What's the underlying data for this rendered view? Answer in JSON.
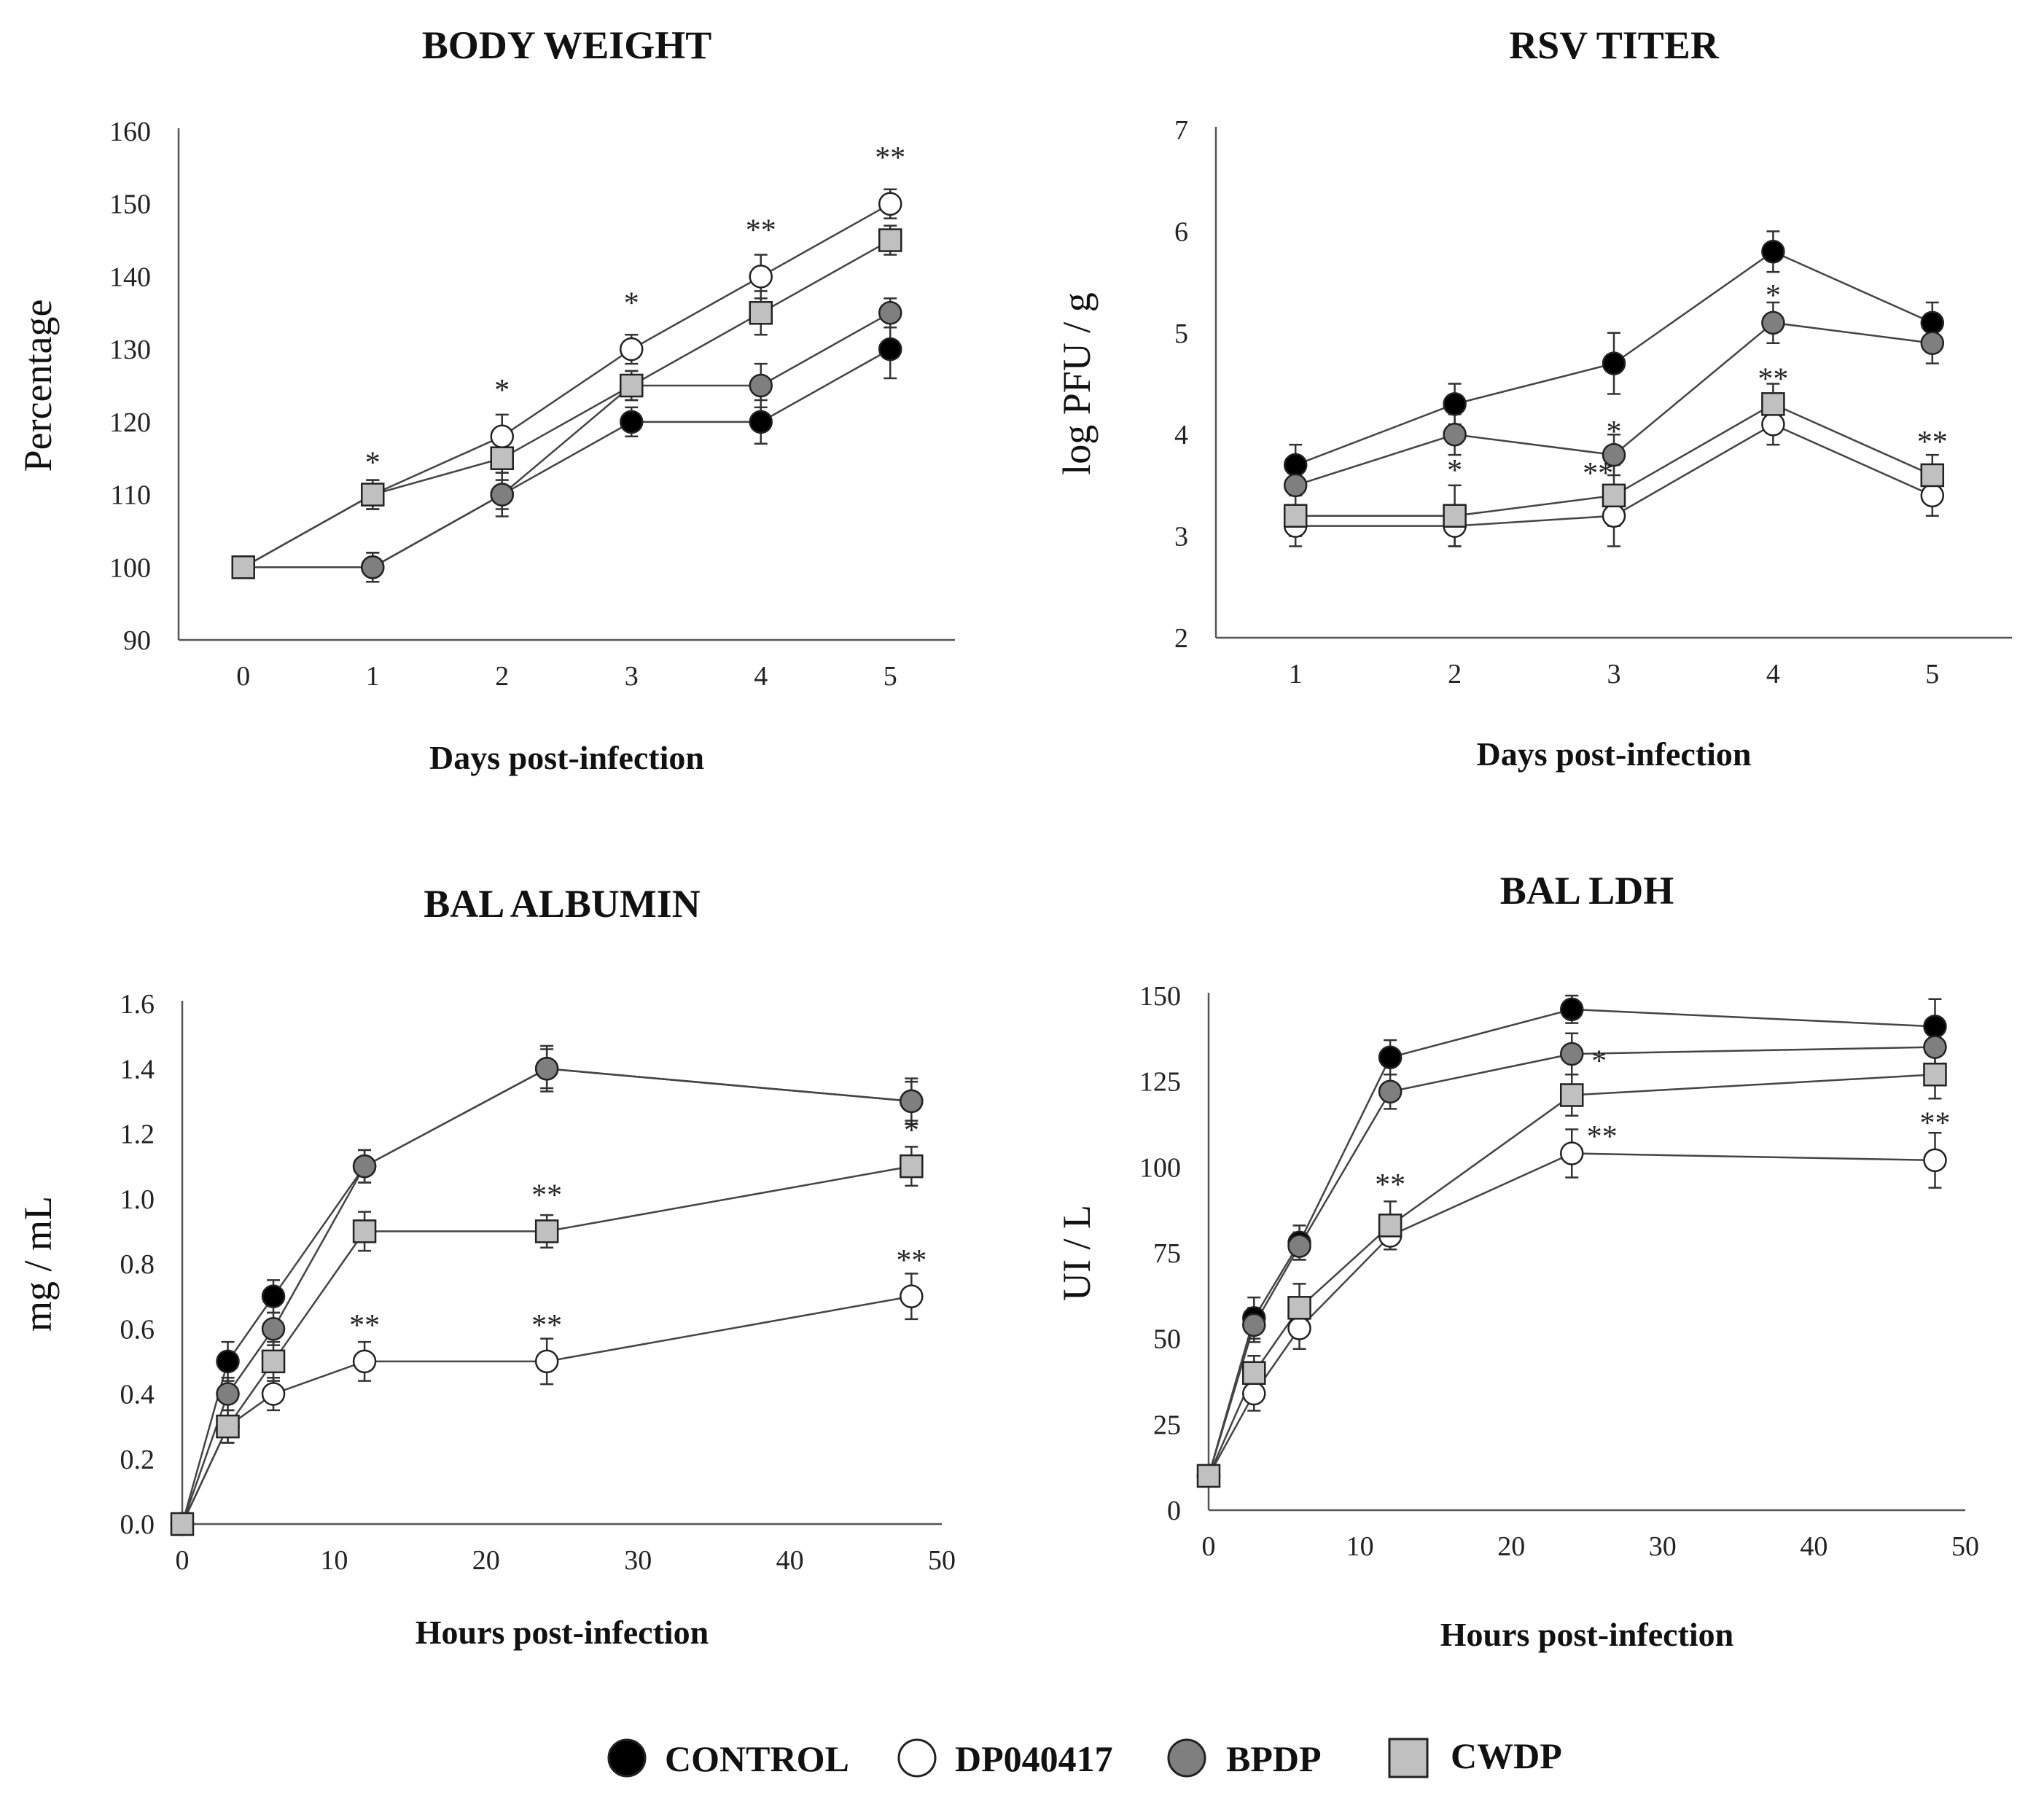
{
  "legend": [
    {
      "key": "control",
      "label": "CONTROL",
      "fill": "#000000",
      "marker": "circle"
    },
    {
      "key": "dp",
      "label": "DP040417",
      "fill": "#ffffff",
      "marker": "circle"
    },
    {
      "key": "bpdp",
      "label": "BPDP",
      "fill": "#7f7f7f",
      "marker": "circle"
    },
    {
      "key": "cwdp",
      "label": "CWDP",
      "fill": "#c0c0c0",
      "marker": "square"
    }
  ],
  "colors": {
    "control": "#000000",
    "dp": "#ffffff",
    "bpdp": "#7f7f7f",
    "cwdp": "#c0c0c0",
    "axis": "#555555",
    "line": "#444444"
  },
  "chart_data": [
    {
      "id": "body-weight",
      "type": "line",
      "title": "BODY WEIGHT",
      "xlabel": "Days post-infection",
      "ylabel": "Percentage",
      "xlim": [
        -0.5,
        5.5
      ],
      "ylim": [
        90,
        160
      ],
      "xticks": [
        0,
        1,
        2,
        3,
        4,
        5
      ],
      "yticks": [
        90,
        100,
        110,
        120,
        130,
        140,
        150,
        160
      ],
      "x": [
        0,
        1,
        2,
        3,
        4,
        5
      ],
      "series": [
        {
          "key": "control",
          "name": "CONTROL",
          "values": [
            100,
            100,
            110,
            120,
            120,
            130
          ],
          "errors": [
            0,
            2,
            2,
            2,
            3,
            4
          ]
        },
        {
          "key": "dp",
          "name": "DP040417",
          "values": [
            100,
            110,
            118,
            130,
            140,
            150
          ],
          "errors": [
            0,
            2,
            3,
            2,
            3,
            2
          ]
        },
        {
          "key": "bpdp",
          "name": "BPDP",
          "values": [
            100,
            100,
            110,
            125,
            125,
            135
          ],
          "errors": [
            0,
            2,
            3,
            2,
            3,
            2
          ]
        },
        {
          "key": "cwdp",
          "name": "CWDP",
          "values": [
            100,
            110,
            115,
            125,
            135,
            145
          ],
          "errors": [
            0,
            2,
            2,
            2,
            3,
            2
          ]
        }
      ],
      "annotations": [
        {
          "x": 1,
          "y": 113,
          "text": "*"
        },
        {
          "x": 2,
          "y": 123,
          "text": "*"
        },
        {
          "x": 3,
          "y": 135,
          "text": "*"
        },
        {
          "x": 4,
          "y": 145,
          "text": "**"
        },
        {
          "x": 5,
          "y": 155,
          "text": "**"
        }
      ]
    },
    {
      "id": "rsv-titer",
      "type": "line",
      "title": "RSV TITER",
      "xlabel": "Days post-infection",
      "ylabel": "log PFU / g",
      "xlim": [
        0.5,
        5.5
      ],
      "ylim": [
        2,
        7
      ],
      "xticks": [
        1,
        2,
        3,
        4,
        5
      ],
      "yticks": [
        2,
        3,
        4,
        5,
        6,
        7
      ],
      "x": [
        1,
        2,
        3,
        4,
        5
      ],
      "series": [
        {
          "key": "control",
          "name": "CONTROL",
          "values": [
            3.7,
            4.3,
            4.7,
            5.8,
            5.1
          ],
          "errors": [
            0.2,
            0.2,
            0.3,
            0.2,
            0.2
          ]
        },
        {
          "key": "dp",
          "name": "DP040417",
          "values": [
            3.1,
            3.1,
            3.2,
            4.1,
            3.4
          ],
          "errors": [
            0.2,
            0.2,
            0.3,
            0.2,
            0.2
          ]
        },
        {
          "key": "bpdp",
          "name": "BPDP",
          "values": [
            3.5,
            4.0,
            3.8,
            5.1,
            4.9
          ],
          "errors": [
            0.2,
            0.2,
            0.2,
            0.2,
            0.2
          ]
        },
        {
          "key": "cwdp",
          "name": "CWDP",
          "values": [
            3.2,
            3.2,
            3.4,
            4.3,
            3.6
          ],
          "errors": [
            0.2,
            0.3,
            0.3,
            0.2,
            0.2
          ]
        }
      ],
      "annotations": [
        {
          "x": 2,
          "y": 3.55,
          "text": "*"
        },
        {
          "x": 3,
          "y": 3.93,
          "text": "*"
        },
        {
          "x": 2.9,
          "y": 3.52,
          "text": "**"
        },
        {
          "x": 4,
          "y": 5.27,
          "text": "*"
        },
        {
          "x": 4,
          "y": 4.45,
          "text": "**"
        },
        {
          "x": 5,
          "y": 3.83,
          "text": "**"
        }
      ]
    },
    {
      "id": "bal-albumin",
      "type": "line",
      "title": "BAL ALBUMIN",
      "xlabel": "Hours post-infection",
      "ylabel": "mg / mL",
      "xlim": [
        0,
        50
      ],
      "ylim": [
        0,
        1.6
      ],
      "xticks": [
        0,
        10,
        20,
        30,
        40,
        50
      ],
      "yticks": [
        0.0,
        0.2,
        0.4,
        0.6,
        0.8,
        1.0,
        1.2,
        1.4,
        1.6
      ],
      "ytick_decimals": 1,
      "x": [
        0,
        3,
        6,
        12,
        24,
        48
      ],
      "series": [
        {
          "key": "control",
          "name": "CONTROL",
          "values": [
            0.0,
            0.5,
            0.7,
            1.1,
            1.4,
            1.3
          ],
          "errors": [
            0,
            0.06,
            0.05,
            0.05,
            0.07,
            0.07
          ]
        },
        {
          "key": "dp",
          "name": "DP040417",
          "values": [
            0.0,
            0.3,
            0.4,
            0.5,
            0.5,
            0.7
          ],
          "errors": [
            0,
            0.05,
            0.05,
            0.06,
            0.07,
            0.07
          ]
        },
        {
          "key": "bpdp",
          "name": "BPDP",
          "values": [
            0.0,
            0.4,
            0.6,
            1.1,
            1.4,
            1.3
          ],
          "errors": [
            0,
            0.05,
            0.05,
            0.05,
            0.06,
            0.06
          ]
        },
        {
          "key": "cwdp",
          "name": "CWDP",
          "values": [
            0.0,
            0.3,
            0.5,
            0.9,
            0.9,
            1.1
          ],
          "errors": [
            0,
            0.05,
            0.06,
            0.06,
            0.05,
            0.06
          ]
        }
      ],
      "annotations": [
        {
          "x": 12,
          "y": 0.58,
          "text": "**"
        },
        {
          "x": 24,
          "y": 0.58,
          "text": "**"
        },
        {
          "x": 24,
          "y": 0.98,
          "text": "**"
        },
        {
          "x": 48,
          "y": 0.78,
          "text": "**"
        },
        {
          "x": 48,
          "y": 1.18,
          "text": "*"
        }
      ]
    },
    {
      "id": "bal-ldh",
      "type": "line",
      "title": "BAL LDH",
      "xlabel": "Hours post-infection",
      "ylabel": "UI / L",
      "xlim": [
        0,
        50
      ],
      "ylim": [
        0,
        150
      ],
      "xticks": [
        0,
        10,
        20,
        30,
        40,
        50
      ],
      "yticks": [
        0,
        25,
        50,
        75,
        100,
        125,
        150
      ],
      "x": [
        0,
        3,
        6,
        12,
        24,
        48
      ],
      "series": [
        {
          "key": "control",
          "name": "CONTROL",
          "values": [
            10,
            56,
            78,
            132,
            146,
            141
          ],
          "errors": [
            0,
            6,
            5,
            5,
            4,
            8
          ]
        },
        {
          "key": "dp",
          "name": "DP040417",
          "values": [
            10,
            34,
            53,
            80,
            104,
            102
          ],
          "errors": [
            0,
            5,
            6,
            4,
            7,
            8
          ]
        },
        {
          "key": "bpdp",
          "name": "BPDP",
          "values": [
            10,
            54,
            77,
            122,
            133,
            135
          ],
          "errors": [
            0,
            5,
            4,
            5,
            6,
            6
          ]
        },
        {
          "key": "cwdp",
          "name": "CWDP",
          "values": [
            10,
            40,
            59,
            83,
            121,
            127
          ],
          "errors": [
            0,
            5,
            7,
            7,
            6,
            7
          ]
        }
      ],
      "annotations": [
        {
          "x": 12,
          "y": 92,
          "text": "**"
        },
        {
          "x": 26,
          "y": 106,
          "text": "**"
        },
        {
          "x": 25.8,
          "y": 128,
          "text": "*"
        },
        {
          "x": 48,
          "y": 110,
          "text": "**"
        }
      ]
    }
  ]
}
